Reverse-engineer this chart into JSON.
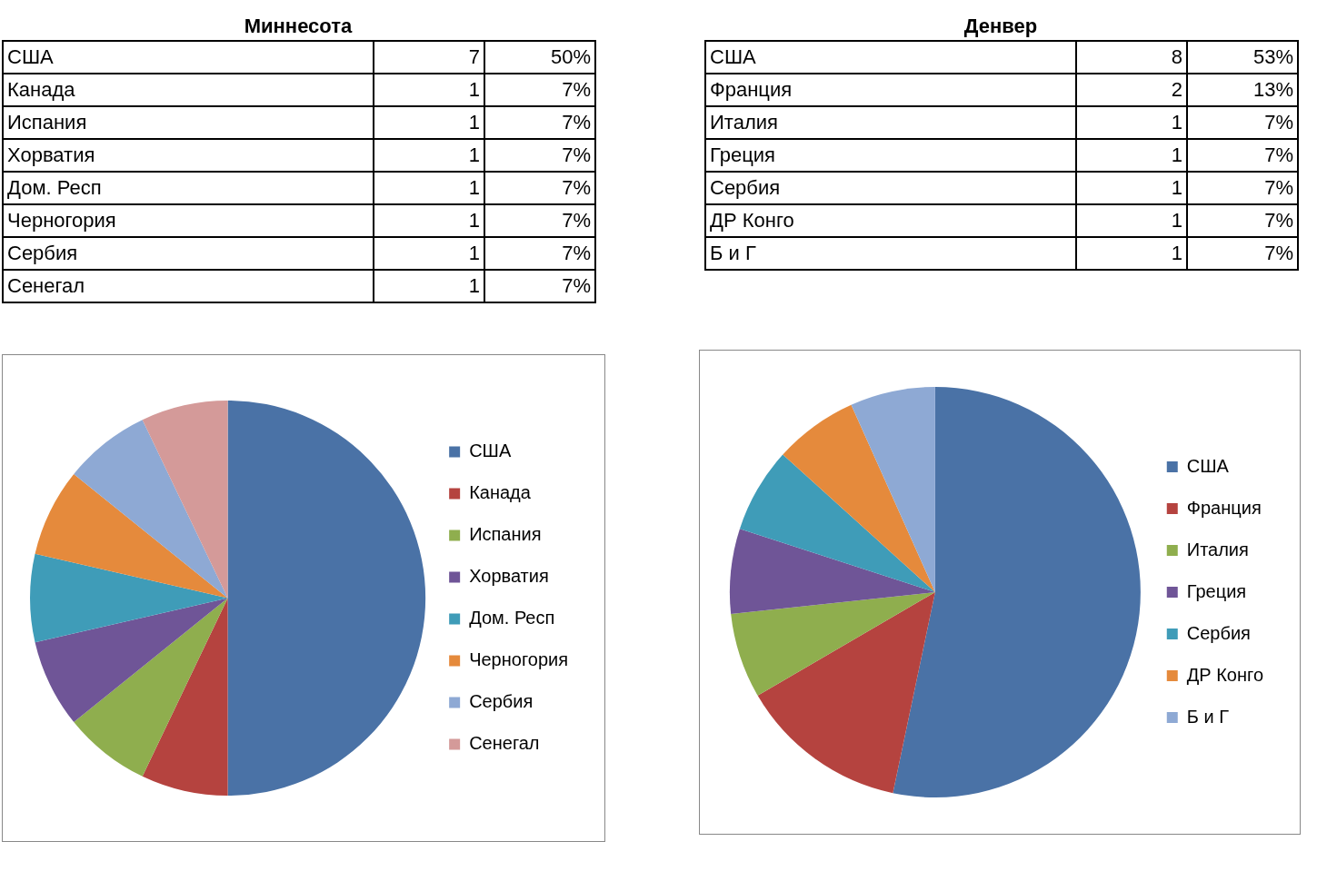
{
  "chart_data": [
    {
      "type": "other",
      "title": "Миннесота",
      "categories": [
        "США",
        "Канада",
        "Испания",
        "Хорватия",
        "Дом. Респ",
        "Черногория",
        "Сербия",
        "Сенегал"
      ],
      "data_labels": true,
      "series": [
        {
          "values": [
            7,
            1,
            1,
            1,
            1,
            1,
            1,
            1
          ]
        },
        {
          "values": [
            50,
            7,
            7,
            7,
            7,
            7,
            7,
            7
          ],
          "value_labels": [
            "50%",
            "7%",
            "7%",
            "7%",
            "7%",
            "7%",
            "7%",
            "7%"
          ]
        }
      ]
    },
    {
      "type": "pie",
      "categories": [
        "США",
        "Канада",
        "Испания",
        "Хорватия",
        "Дом. Респ",
        "Черногория",
        "Сербия",
        "Сенегал"
      ],
      "values": [
        50,
        7.1,
        7.1,
        7.2,
        7.2,
        7.2,
        7.1,
        7.1
      ],
      "colors": [
        "#4a72a6",
        "#b5433f",
        "#8fae4e",
        "#6f5597",
        "#3f9cb8",
        "#e58a3c",
        "#8ea9d4",
        "#d49a99"
      ],
      "legend": "right"
    },
    {
      "type": "other",
      "title": "Денвер",
      "categories": [
        "США",
        "Франция",
        "Италия",
        "Греция",
        "Сербия",
        "ДР Конго",
        "Б и Г"
      ],
      "data_labels": true,
      "series": [
        {
          "values": [
            8,
            2,
            1,
            1,
            1,
            1,
            1
          ]
        },
        {
          "values": [
            53,
            13,
            7,
            7,
            7,
            7,
            7
          ],
          "value_labels": [
            "53%",
            "13%",
            "7%",
            "7%",
            "7%",
            "7%",
            "7%"
          ]
        }
      ]
    },
    {
      "type": "pie",
      "categories": [
        "США",
        "Франция",
        "Италия",
        "Греция",
        "Сербия",
        "ДР Конго",
        "Б и Г"
      ],
      "values": [
        53.3,
        13.3,
        6.7,
        6.7,
        6.7,
        6.6,
        6.7
      ],
      "colors": [
        "#4a72a6",
        "#b5433f",
        "#8fae4e",
        "#6f5597",
        "#3f9cb8",
        "#e58a3c",
        "#8ea9d4"
      ],
      "legend": "right"
    }
  ]
}
